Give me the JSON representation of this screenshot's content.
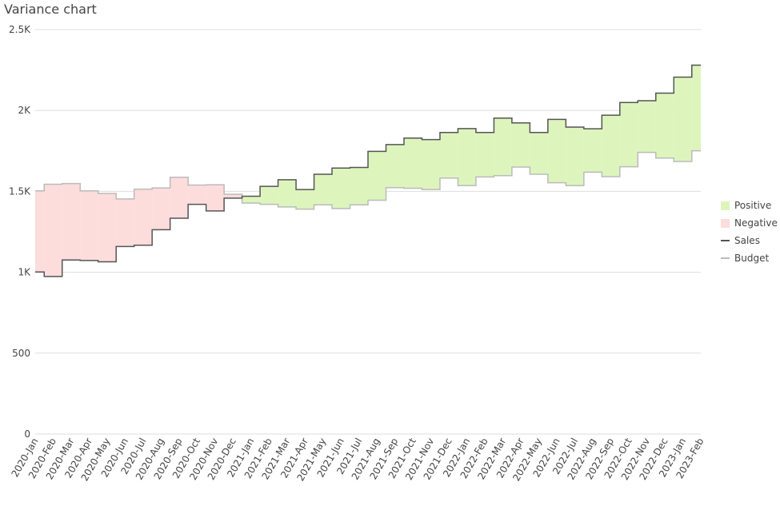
{
  "chart_data": {
    "type": "area",
    "title": "Variance chart",
    "xlabel": "",
    "ylabel": "",
    "ylim": [
      0,
      2500
    ],
    "yticks": [
      0,
      500,
      1000,
      1500,
      2000,
      2500
    ],
    "ytick_labels": [
      "0",
      "500",
      "1K",
      "1.5K",
      "2K",
      "2.5K"
    ],
    "grid": true,
    "legend_position": "right",
    "line_shape": "step (centered)",
    "categories": [
      "2020-Jan",
      "2020-Feb",
      "2020-Mar",
      "2020-Apr",
      "2020-May",
      "2020-Jun",
      "2020-Jul",
      "2020-Aug",
      "2020-Sep",
      "2020-Oct",
      "2020-Nov",
      "2020-Dec",
      "2021-Jan",
      "2021-Feb",
      "2021-Mar",
      "2021-Apr",
      "2021-May",
      "2021-Jun",
      "2021-Jul",
      "2021-Aug",
      "2021-Sep",
      "2021-Oct",
      "2021-Nov",
      "2021-Dec",
      "2022-Jan",
      "2022-Feb",
      "2022-Mar",
      "2022-Apr",
      "2022-May",
      "2022-Jun",
      "2022-Jul",
      "2022-Aug",
      "2022-Sep",
      "2022-Oct",
      "2022-Nov",
      "2022-Dec",
      "2023-Jan",
      "2023-Feb"
    ],
    "series": [
      {
        "name": "Sales",
        "color": "#555555",
        "values": [
          1002,
          974,
          1076,
          1073,
          1065,
          1159,
          1167,
          1263,
          1334,
          1420,
          1379,
          1458,
          1470,
          1531,
          1572,
          1511,
          1606,
          1644,
          1648,
          1747,
          1789,
          1829,
          1820,
          1864,
          1888,
          1864,
          1953,
          1923,
          1864,
          1945,
          1897,
          1887,
          1971,
          2049,
          2060,
          2107,
          2206,
          2280
        ]
      },
      {
        "name": "Budget",
        "color": "#bbbbbb",
        "values": [
          1503,
          1544,
          1548,
          1503,
          1487,
          1453,
          1514,
          1521,
          1587,
          1539,
          1541,
          1482,
          1428,
          1420,
          1404,
          1390,
          1417,
          1394,
          1417,
          1445,
          1523,
          1519,
          1511,
          1582,
          1536,
          1589,
          1597,
          1650,
          1606,
          1553,
          1536,
          1619,
          1591,
          1652,
          1741,
          1706,
          1685,
          1751
        ]
      }
    ],
    "fills": [
      {
        "name": "Positive",
        "color": "#ddf5bc",
        "condition": "Sales > Budget"
      },
      {
        "name": "Negative",
        "color": "#fddcdc",
        "condition": "Sales < Budget"
      }
    ]
  },
  "legend": {
    "items": [
      {
        "label": "Positive",
        "type": "fill",
        "color": "#ddf5bc"
      },
      {
        "label": "Negative",
        "type": "fill",
        "color": "#fddcdc"
      },
      {
        "label": "Sales",
        "type": "line",
        "color": "#555555"
      },
      {
        "label": "Budget",
        "type": "line",
        "color": "#bbbbbb"
      }
    ]
  }
}
